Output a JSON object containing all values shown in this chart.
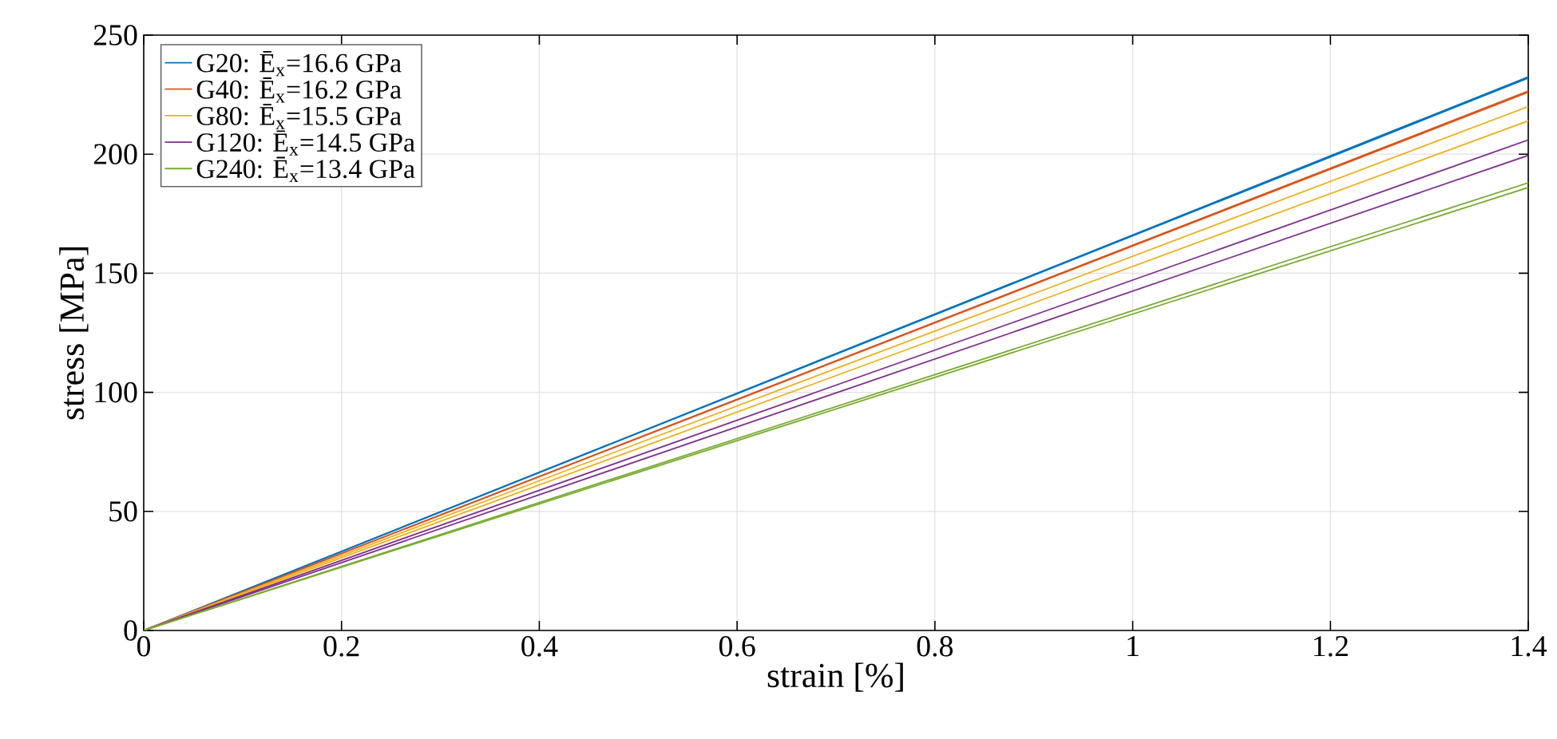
{
  "chart_data": {
    "type": "line",
    "xlabel": "strain [%]",
    "ylabel": "stress [MPa]",
    "x": [
      0,
      1.4
    ],
    "series": [
      {
        "name": "G20: Ē$_{x}$=16.6 GPa",
        "color": "#0072bd",
        "values": [
          0,
          232.5
        ]
      },
      {
        "color": "#0072bd",
        "values": [
          0,
          232
        ]
      },
      {
        "name": "G40: Ē$_{x}$=16.2 GPa",
        "color": "#d95319",
        "values": [
          0,
          226.5
        ]
      },
      {
        "color": "#d95319",
        "values": [
          0,
          226
        ]
      },
      {
        "name": "G80: Ē$_{x}$=15.5 GPa",
        "color": "#edb120",
        "values": [
          0,
          220
        ]
      },
      {
        "color": "#edb120",
        "values": [
          0,
          214
        ]
      },
      {
        "name": "G120: Ē$_{x}$=14.5 GPa",
        "color": "#7e2f8e",
        "values": [
          0,
          206
        ]
      },
      {
        "color": "#7e2f8e",
        "values": [
          0,
          199.5
        ]
      },
      {
        "name": "G240: Ē$_{x}$=13.4 GPa",
        "color": "#77ac30",
        "values": [
          0,
          188
        ]
      },
      {
        "color": "#77ac30",
        "values": [
          0,
          186
        ]
      }
    ],
    "xlim": [
      0,
      1.4
    ],
    "xticks": [
      0,
      0.2,
      0.4,
      0.6,
      0.8,
      1,
      1.2,
      1.4
    ],
    "ylim": [
      0,
      250
    ],
    "yticks": [
      0,
      50,
      100,
      150,
      200,
      250
    ],
    "grid": true,
    "legend": "top left",
    "marker": "none",
    "line_style": "solid"
  }
}
